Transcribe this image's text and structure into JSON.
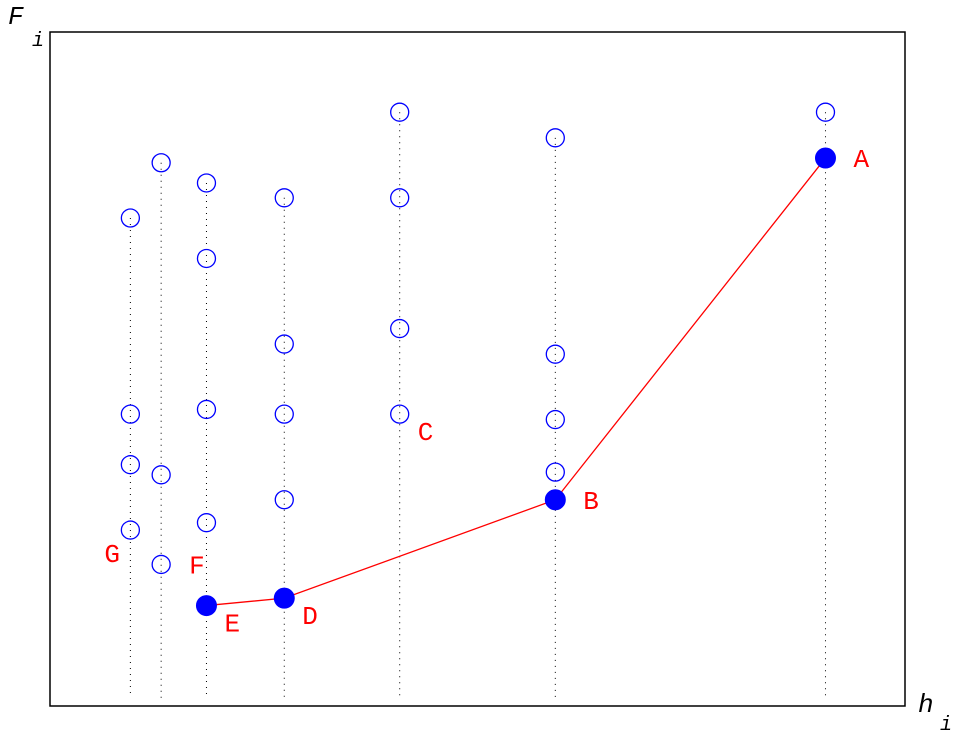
{
  "chart_data": {
    "type": "scatter",
    "xlabel": {
      "main": "h",
      "sub": "i"
    },
    "ylabel": {
      "main": "F",
      "sub": "i"
    },
    "grid": false,
    "legend": "none",
    "colors": {
      "points": "#0000ff",
      "frontier": "#ff0000",
      "labels": "#ff0000",
      "guides": "#000000"
    },
    "xlim": [
      0,
      100
    ],
    "ylim": [
      0,
      100
    ],
    "columns": [
      {
        "x": 9.4,
        "y": [
          72.4,
          43.3,
          35.8,
          26.1
        ]
      },
      {
        "x": 13.0,
        "y": 80.6,
        "extra": [
          34.3,
          21.0
        ]
      },
      {
        "x": 18.3,
        "y": [
          77.6,
          66.4,
          44.0,
          27.2
        ]
      },
      {
        "x": 27.4,
        "y": [
          75.4,
          53.7,
          43.3,
          30.6
        ]
      },
      {
        "x": 40.9,
        "y": [
          88.1,
          75.4,
          56.0,
          43.3
        ]
      },
      {
        "x": 59.1,
        "y": [
          84.3,
          52.2,
          42.5,
          34.7
        ]
      },
      {
        "x": 90.7,
        "y": [
          88.1
        ]
      }
    ],
    "hollow_points": [
      {
        "x": 9.4,
        "y": 72.4
      },
      {
        "x": 9.4,
        "y": 43.3
      },
      {
        "x": 9.4,
        "y": 35.8
      },
      {
        "x": 9.4,
        "y": 26.1
      },
      {
        "x": 13.0,
        "y": 80.6
      },
      {
        "x": 13.0,
        "y": 34.3
      },
      {
        "x": 13.0,
        "y": 21.0
      },
      {
        "x": 18.3,
        "y": 77.6
      },
      {
        "x": 18.3,
        "y": 66.4
      },
      {
        "x": 18.3,
        "y": 44.0
      },
      {
        "x": 18.3,
        "y": 27.2
      },
      {
        "x": 27.4,
        "y": 75.4
      },
      {
        "x": 27.4,
        "y": 53.7
      },
      {
        "x": 27.4,
        "y": 43.3
      },
      {
        "x": 27.4,
        "y": 30.6
      },
      {
        "x": 40.9,
        "y": 88.1
      },
      {
        "x": 40.9,
        "y": 75.4
      },
      {
        "x": 40.9,
        "y": 56.0
      },
      {
        "x": 40.9,
        "y": 43.3
      },
      {
        "x": 59.1,
        "y": 84.3
      },
      {
        "x": 59.1,
        "y": 52.2
      },
      {
        "x": 59.1,
        "y": 42.5
      },
      {
        "x": 59.1,
        "y": 34.7
      },
      {
        "x": 90.7,
        "y": 88.1
      }
    ],
    "frontier": [
      {
        "label": "E",
        "x": 18.3,
        "y": 14.9
      },
      {
        "label": "D",
        "x": 27.4,
        "y": 16.0
      },
      {
        "label": "B",
        "x": 59.1,
        "y": 30.6
      },
      {
        "label": "A",
        "x": 90.7,
        "y": 81.3
      }
    ],
    "annotations": [
      {
        "label": "A",
        "x": 90.7,
        "y": 81.3,
        "anchor": "right"
      },
      {
        "label": "B",
        "x": 59.1,
        "y": 30.6,
        "anchor": "right"
      },
      {
        "label": "C",
        "x": 40.9,
        "y": 43.3,
        "anchor": "below-right"
      },
      {
        "label": "D",
        "x": 27.4,
        "y": 16.0,
        "anchor": "below-right"
      },
      {
        "label": "E",
        "x": 18.3,
        "y": 14.9,
        "anchor": "below-right"
      },
      {
        "label": "F",
        "x": 13.0,
        "y": 21.0,
        "anchor": "right"
      },
      {
        "label": "G",
        "x": 9.4,
        "y": 26.1,
        "anchor": "below-left"
      }
    ]
  }
}
